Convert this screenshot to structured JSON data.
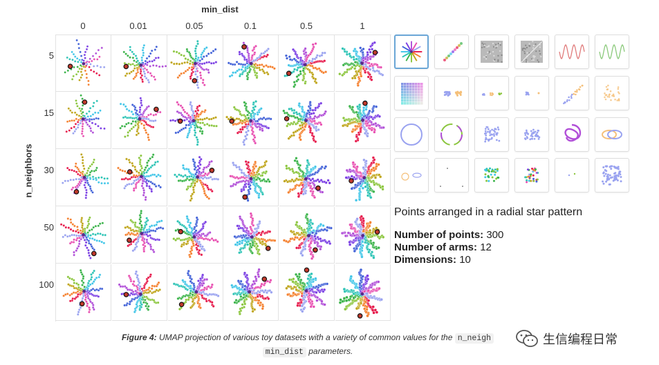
{
  "figure": {
    "column_axis_title": "min_dist",
    "row_axis_title": "n_neighbors",
    "columns": [
      "0",
      "0.01",
      "0.05",
      "0.1",
      "0.5",
      "1"
    ],
    "rows": [
      "5",
      "15",
      "30",
      "50",
      "100"
    ]
  },
  "colors": {
    "arms": [
      "#e6194b",
      "#f58231",
      "#bfa51a",
      "#8cc63f",
      "#3cb44b",
      "#2ec4b6",
      "#42c6e8",
      "#4363d8",
      "#7b3fe4",
      "#b14fd8",
      "#e84fb1",
      "#9aa3f0"
    ],
    "selected_border": "#6aa6d6"
  },
  "thumbnails": [
    {
      "icon": "radial-star-icon",
      "selected": true
    },
    {
      "icon": "linear-clusters-icon",
      "selected": false
    },
    {
      "icon": "gray-noise-icon",
      "selected": false
    },
    {
      "icon": "gray-noise-diagonal-icon",
      "selected": false
    },
    {
      "icon": "sine-wave-red-icon",
      "selected": false
    },
    {
      "icon": "sine-wave-green-icon",
      "selected": false
    },
    {
      "icon": "color-grid-icon",
      "selected": false
    },
    {
      "icon": "two-clusters-icon",
      "selected": false
    },
    {
      "icon": "three-clusters-icon",
      "selected": false
    },
    {
      "icon": "small-clusters-icon",
      "selected": false
    },
    {
      "icon": "diagonal-band-icon",
      "selected": false
    },
    {
      "icon": "orange-cloud-icon",
      "selected": false
    },
    {
      "icon": "circle-ring-icon",
      "selected": false
    },
    {
      "icon": "circle-ring-gradient-icon",
      "selected": false
    },
    {
      "icon": "blob-cloud-icon",
      "selected": false
    },
    {
      "icon": "blob-cloud-flat-icon",
      "selected": false
    },
    {
      "icon": "trefoil-knot-icon",
      "selected": false
    },
    {
      "icon": "linked-rings-icon",
      "selected": false
    },
    {
      "icon": "small-rings-icon",
      "selected": false
    },
    {
      "icon": "sparse-points-icon",
      "selected": false
    },
    {
      "icon": "green-cluster-icon",
      "selected": false
    },
    {
      "icon": "multicolor-cluster-icon",
      "selected": false
    },
    {
      "icon": "dots-pair-icon",
      "selected": false
    },
    {
      "icon": "uniform-square-icon",
      "selected": false
    }
  ],
  "description": {
    "title": "Points arranged in a radial star pattern",
    "stats": [
      {
        "label": "Number of points:",
        "value": "300"
      },
      {
        "label": "Number of arms:",
        "value": "12"
      },
      {
        "label": "Dimensions:",
        "value": "10"
      }
    ]
  },
  "caption": {
    "prefix": "Figure 4:",
    "text1": " UMAP projection of various toy datasets with a variety of common values for the ",
    "code1": "n_neigh",
    "code2": "min_dist",
    "text2": " parameters."
  },
  "watermark": {
    "text": "生信编程日常",
    "icon": "wechat-icon"
  }
}
